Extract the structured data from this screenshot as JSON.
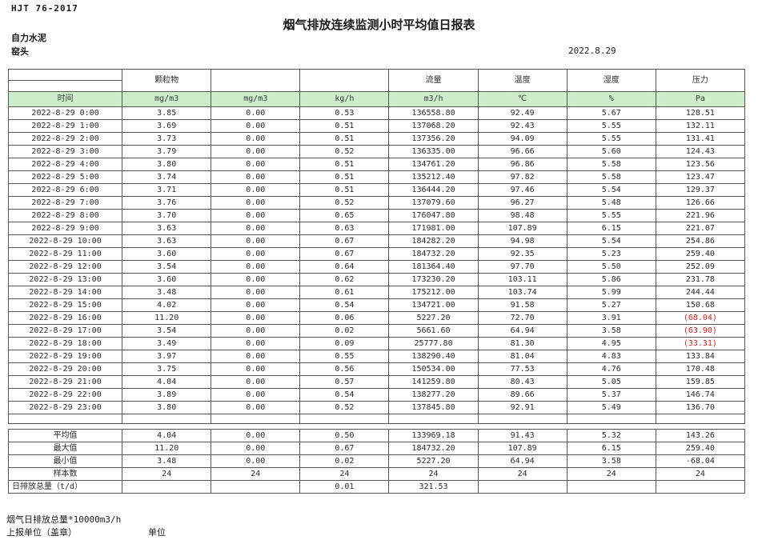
{
  "page": {
    "doc_code": "HJT  76-2017",
    "title": "烟气排放连续监测小时平均值日报表",
    "company": "自力水泥",
    "location": "窑头",
    "date": "2022.8.29"
  },
  "colors": {
    "units_row_green": "#CCEECB",
    "negative_red": "#E02020",
    "border": "#555555"
  },
  "table": {
    "group_headers": [
      "",
      "颗粒物",
      "",
      "",
      "流量",
      "温度",
      "湿度",
      "压力"
    ],
    "units": [
      "时间",
      "mg/m3",
      "mg/m3",
      "kg/h",
      "m3/h",
      "℃",
      "%",
      "Pa"
    ],
    "data_rows": [
      [
        "2022-8-29 0:00",
        "3.85",
        "0.00",
        "0.53",
        "136558.80",
        "92.49",
        "5.67",
        "128.51"
      ],
      [
        "2022-8-29 1:00",
        "3.69",
        "0.00",
        "0.51",
        "137068.20",
        "92.43",
        "5.55",
        "132.11"
      ],
      [
        "2022-8-29 2:00",
        "3.73",
        "0.00",
        "0.51",
        "137356.20",
        "94.09",
        "5.55",
        "131.41"
      ],
      [
        "2022-8-29 3:00",
        "3.79",
        "0.00",
        "0.52",
        "136335.00",
        "96.66",
        "5.60",
        "124.43"
      ],
      [
        "2022-8-29 4:00",
        "3.80",
        "0.00",
        "0.51",
        "134761.20",
        "96.86",
        "5.58",
        "123.56"
      ],
      [
        "2022-8-29 5:00",
        "3.74",
        "0.00",
        "0.51",
        "135212.40",
        "97.82",
        "5.58",
        "123.47"
      ],
      [
        "2022-8-29 6:00",
        "3.71",
        "0.00",
        "0.51",
        "136444.20",
        "97.46",
        "5.54",
        "129.37"
      ],
      [
        "2022-8-29 7:00",
        "3.76",
        "0.00",
        "0.52",
        "137079.60",
        "96.27",
        "5.48",
        "126.66"
      ],
      [
        "2022-8-29 8:00",
        "3.70",
        "0.00",
        "0.65",
        "176047.80",
        "98.48",
        "5.55",
        "221.96"
      ],
      [
        "2022-8-29 9:00",
        "3.63",
        "0.00",
        "0.63",
        "171981.00",
        "107.89",
        "6.15",
        "221.07"
      ],
      [
        "2022-8-29 10:00",
        "3.63",
        "0.00",
        "0.67",
        "184282.20",
        "94.98",
        "5.54",
        "254.86"
      ],
      [
        "2022-8-29 11:00",
        "3.60",
        "0.00",
        "0.67",
        "184732.20",
        "92.35",
        "5.23",
        "259.40"
      ],
      [
        "2022-8-29 12:00",
        "3.54",
        "0.00",
        "0.64",
        "181364.40",
        "97.70",
        "5.50",
        "252.09"
      ],
      [
        "2022-8-29 13:00",
        "3.60",
        "0.00",
        "0.62",
        "173230.20",
        "103.11",
        "5.86",
        "231.78"
      ],
      [
        "2022-8-29 14:00",
        "3.48",
        "0.00",
        "0.61",
        "175212.00",
        "103.74",
        "5.99",
        "244.44"
      ],
      [
        "2022-8-29 15:00",
        "4.02",
        "0.00",
        "0.54",
        "134721.00",
        "91.58",
        "5.27",
        "150.68"
      ],
      [
        "2022-8-29 16:00",
        "11.20",
        "0.00",
        "0.06",
        "5227.20",
        "72.70",
        "3.91",
        "(68.04)"
      ],
      [
        "2022-8-29 17:00",
        "3.54",
        "0.00",
        "0.02",
        "5661.60",
        "64.94",
        "3.58",
        "(63.90)"
      ],
      [
        "2022-8-29 18:00",
        "3.49",
        "0.00",
        "0.09",
        "25777.80",
        "81.30",
        "4.95",
        "(33.31)"
      ],
      [
        "2022-8-29 19:00",
        "3.97",
        "0.00",
        "0.55",
        "138290.40",
        "81.04",
        "4.83",
        "133.84"
      ],
      [
        "2022-8-29 20:00",
        "3.75",
        "0.00",
        "0.56",
        "150534.00",
        "77.53",
        "4.76",
        "170.48"
      ],
      [
        "2022-8-29 21:00",
        "4.04",
        "0.00",
        "0.57",
        "141259.80",
        "80.43",
        "5.05",
        "159.85"
      ],
      [
        "2022-8-29 22:00",
        "3.89",
        "0.00",
        "0.54",
        "138277.20",
        "89.66",
        "5.37",
        "146.74"
      ],
      [
        "2022-8-29 23:00",
        "3.80",
        "0.00",
        "0.52",
        "137845.80",
        "92.91",
        "5.49",
        "136.70"
      ]
    ],
    "summary_rows": [
      [
        "平均值",
        "4.04",
        "0.00",
        "0.50",
        "133969.18",
        "91.43",
        "5.32",
        "143.26"
      ],
      [
        "最大值",
        "11.20",
        "0.00",
        "0.67",
        "184732.20",
        "107.89",
        "6.15",
        "259.40"
      ],
      [
        "最小值",
        "3.48",
        "0.00",
        "0.02",
        "5227.20",
        "64.94",
        "3.58",
        "-68.04"
      ],
      [
        "样本数",
        "24",
        "24",
        "24",
        "24",
        "24",
        "24",
        "24"
      ],
      [
        "日排放总量（t/d）",
        "",
        "",
        "0.01",
        "321.53",
        "",
        "",
        ""
      ]
    ]
  },
  "footer": {
    "note": "烟气日排放总量*10000m3/h",
    "report_unit_label": "上报单位（盖章）",
    "unit_label": "单位"
  }
}
